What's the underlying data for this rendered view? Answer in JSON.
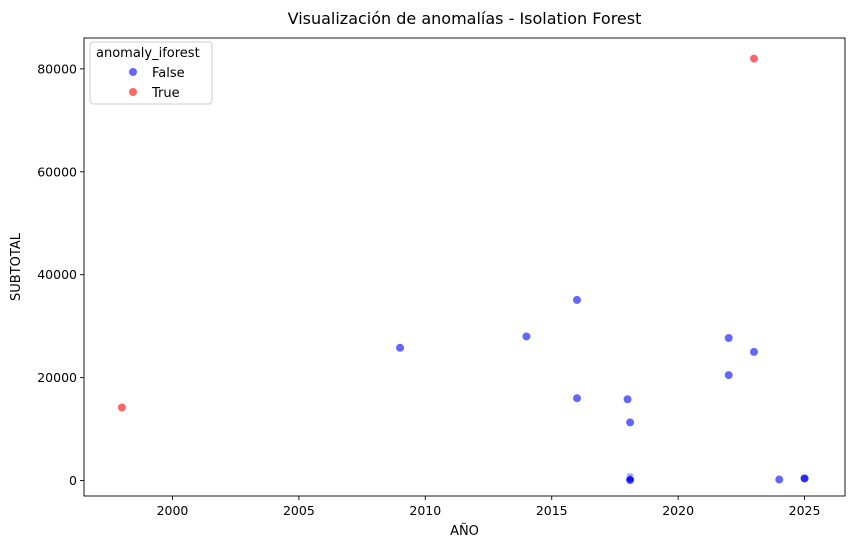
{
  "chart_data": {
    "type": "scatter",
    "title": "Visualización de anomalías - Isolation Forest",
    "xlabel": "AÑO",
    "ylabel": "SUBTOTAL",
    "xlim": [
      1996.5,
      2026.6
    ],
    "ylim": [
      -3000,
      86000
    ],
    "xticks": [
      2000,
      2005,
      2010,
      2015,
      2020,
      2025
    ],
    "yticks": [
      0,
      20000,
      40000,
      60000,
      80000
    ],
    "grid": false,
    "legend": {
      "title": "anomaly_iforest",
      "placement": "top-left"
    },
    "series": [
      {
        "name": "False",
        "color": "#0000ff",
        "points": [
          {
            "x": 2009,
            "y": 25800
          },
          {
            "x": 2014,
            "y": 28000
          },
          {
            "x": 2016,
            "y": 35100
          },
          {
            "x": 2016,
            "y": 16000
          },
          {
            "x": 2018,
            "y": 15800
          },
          {
            "x": 2018.1,
            "y": 11300
          },
          {
            "x": 2018.1,
            "y": 600
          },
          {
            "x": 2018.1,
            "y": 300
          },
          {
            "x": 2018.1,
            "y": 100
          },
          {
            "x": 2022,
            "y": 27700
          },
          {
            "x": 2022,
            "y": 20500
          },
          {
            "x": 2023,
            "y": 25000
          },
          {
            "x": 2024,
            "y": 200
          },
          {
            "x": 2025,
            "y": 500
          },
          {
            "x": 2025,
            "y": 400
          }
        ]
      },
      {
        "name": "True",
        "color": "#ff0000",
        "points": [
          {
            "x": 1998,
            "y": 14200
          },
          {
            "x": 2023,
            "y": 82000
          }
        ]
      }
    ]
  }
}
